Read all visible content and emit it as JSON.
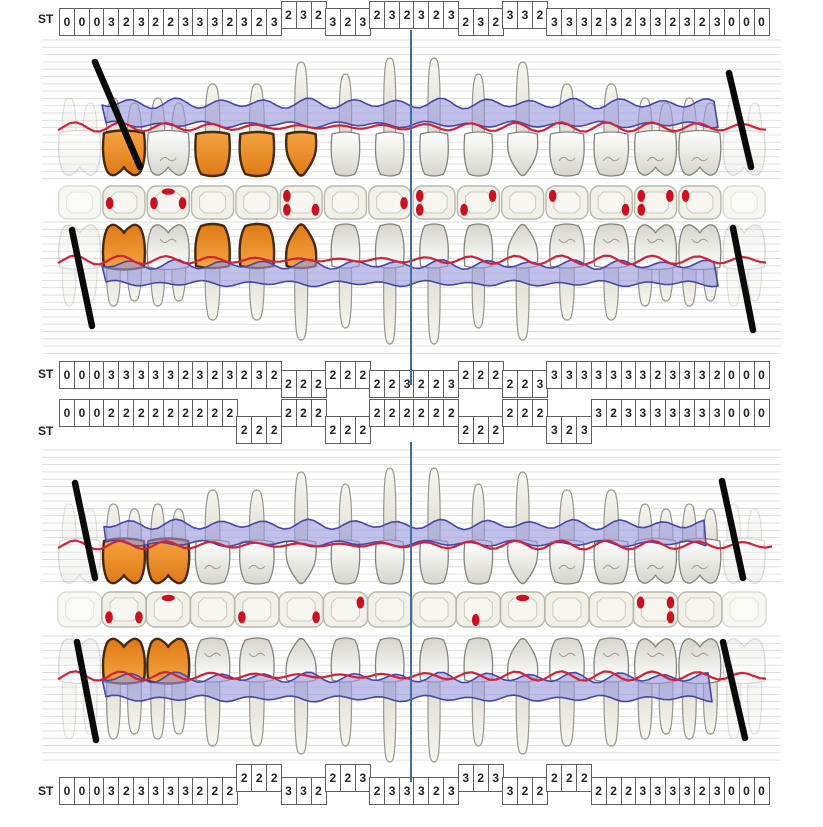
{
  "st_label": "ST",
  "colors": {
    "orange_light": "#f4a441",
    "orange_dark": "#df7a16",
    "orange_stroke": "#47290e",
    "blue_band_fill": "#9a9ade",
    "blue_band_stroke": "#4747a8",
    "red_line": "#d22239",
    "red_dot": "#cc1020",
    "midline_blue": "#3f6fa8",
    "rule_line": "#dcdcdc",
    "box_border": "#5f5f5f",
    "tooth_stroke": "#85847c",
    "root_stroke": "#97968c",
    "black_mark": "#0a0a0a",
    "tile_fill": "#f1f0e9",
    "tile_stroke": "#b8b7ac"
  },
  "st_rows": [
    {
      "id": "upper-buccal",
      "groups": [
        {
          "v": "000",
          "o": 0
        },
        {
          "v": "323",
          "o": 0
        },
        {
          "v": "223",
          "o": 0
        },
        {
          "v": "332",
          "o": 0
        },
        {
          "v": "323",
          "o": 0
        },
        {
          "v": "232",
          "o": 1
        },
        {
          "v": "323",
          "o": 0
        },
        {
          "v": "232",
          "o": 1
        },
        {
          "v": "323",
          "o": 1
        },
        {
          "v": "232",
          "o": 0
        },
        {
          "v": "332",
          "o": 1
        },
        {
          "v": "333",
          "o": 0
        },
        {
          "v": "232",
          "o": 0
        },
        {
          "v": "332",
          "o": 0
        },
        {
          "v": "323",
          "o": 0
        },
        {
          "v": "000",
          "o": 0
        }
      ]
    },
    {
      "id": "upper-palatal",
      "groups": [
        {
          "v": "000",
          "o": 0
        },
        {
          "v": "333",
          "o": 0
        },
        {
          "v": "332",
          "o": 0
        },
        {
          "v": "323",
          "o": 0
        },
        {
          "v": "232",
          "o": 0
        },
        {
          "v": "222",
          "o": 1
        },
        {
          "v": "222",
          "o": 0
        },
        {
          "v": "223",
          "o": 1
        },
        {
          "v": "223",
          "o": 1
        },
        {
          "v": "222",
          "o": 0
        },
        {
          "v": "223",
          "o": 1
        },
        {
          "v": "333",
          "o": 0
        },
        {
          "v": "333",
          "o": 0
        },
        {
          "v": "323",
          "o": 0
        },
        {
          "v": "332",
          "o": 0
        },
        {
          "v": "000",
          "o": 0
        }
      ]
    },
    {
      "id": "lower-lingual",
      "groups": [
        {
          "v": "000",
          "o": 0
        },
        {
          "v": "222",
          "o": 0
        },
        {
          "v": "222",
          "o": 0
        },
        {
          "v": "222",
          "o": 0
        },
        {
          "v": "222",
          "o": 1
        },
        {
          "v": "222",
          "o": 0
        },
        {
          "v": "222",
          "o": 1
        },
        {
          "v": "222",
          "o": 0
        },
        {
          "v": "222",
          "o": 0
        },
        {
          "v": "222",
          "o": 1
        },
        {
          "v": "222",
          "o": 0
        },
        {
          "v": "323",
          "o": 1
        },
        {
          "v": "323",
          "o": 0
        },
        {
          "v": "333",
          "o": 0
        },
        {
          "v": "333",
          "o": 0
        },
        {
          "v": "000",
          "o": 0
        }
      ]
    },
    {
      "id": "lower-buccal",
      "groups": [
        {
          "v": "000",
          "o": 0
        },
        {
          "v": "323",
          "o": 0
        },
        {
          "v": "333",
          "o": 0
        },
        {
          "v": "222",
          "o": 0
        },
        {
          "v": "222",
          "o": 1
        },
        {
          "v": "332",
          "o": 0
        },
        {
          "v": "223",
          "o": 1
        },
        {
          "v": "233",
          "o": 0
        },
        {
          "v": "323",
          "o": 0
        },
        {
          "v": "323",
          "o": 1
        },
        {
          "v": "322",
          "o": 0
        },
        {
          "v": "222",
          "o": 1
        },
        {
          "v": "222",
          "o": 0
        },
        {
          "v": "333",
          "o": 0
        },
        {
          "v": "323",
          "o": 0
        },
        {
          "v": "000",
          "o": 0
        }
      ]
    }
  ],
  "arches": {
    "upper": {
      "tooth_types": [
        "molar",
        "molar",
        "molar",
        "premolar",
        "premolar",
        "canine",
        "incisor",
        "incisor",
        "incisor",
        "incisor",
        "canine",
        "premolar",
        "premolar",
        "molar",
        "molar",
        "molar"
      ],
      "missing": [
        1,
        16
      ],
      "restored_orange": [
        2,
        4,
        5,
        6
      ],
      "occlusal_marks": [
        [],
        [
          "left-center"
        ],
        [
          "left-center",
          "top-center",
          "right-center"
        ],
        [],
        [],
        [
          "left-top",
          "left-bottom",
          "right-bottom"
        ],
        [],
        [
          "right-center"
        ],
        [
          "left-top",
          "left-bottom"
        ],
        [
          "left-bottom",
          "right-top"
        ],
        [],
        [
          "left-top"
        ],
        [
          "right-bottom"
        ],
        [
          "left-top",
          "left-bottom",
          "right-top"
        ],
        [
          "left-top"
        ],
        []
      ]
    },
    "lower": {
      "tooth_types": [
        "molar",
        "molar",
        "molar",
        "premolar",
        "premolar",
        "canine",
        "incisor",
        "incisor",
        "incisor",
        "incisor",
        "canine",
        "premolar",
        "premolar",
        "molar",
        "molar",
        "molar"
      ],
      "missing": [
        1,
        16
      ],
      "restored_orange": [
        2,
        3
      ],
      "occlusal_marks": [
        [],
        [
          "left-bottom",
          "right-bottom"
        ],
        [
          "top-center"
        ],
        [],
        [
          "left-bottom"
        ],
        [
          "right-bottom"
        ],
        [
          "right-top"
        ],
        [],
        [],
        [
          "center-bottom"
        ],
        [
          "top-center"
        ],
        [],
        [],
        [
          "left-top",
          "right-top",
          "right-bottom"
        ],
        [],
        []
      ]
    }
  }
}
